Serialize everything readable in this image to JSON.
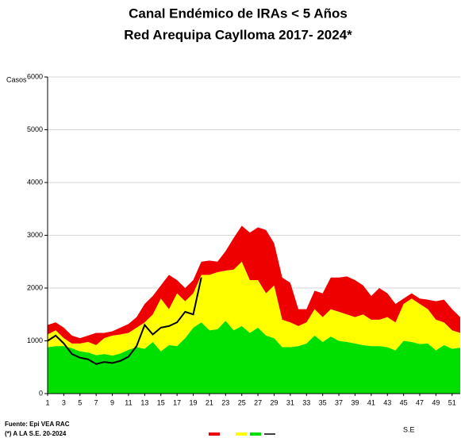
{
  "chart_data": {
    "type": "area",
    "stacked": true,
    "title": "Canal Endémico de IRAs < 5 Años",
    "subtitle": "Red Arequipa Caylloma 2017- 2024*",
    "y_label": "Casos",
    "x_label": "S.E",
    "source": "Fuente: Epi VEA RAC",
    "note": "(*) A LA S.E. 20-2024",
    "x": [
      1,
      2,
      3,
      4,
      5,
      6,
      7,
      8,
      9,
      10,
      11,
      12,
      13,
      14,
      15,
      16,
      17,
      18,
      19,
      20,
      21,
      22,
      23,
      24,
      25,
      26,
      27,
      28,
      29,
      30,
      31,
      32,
      33,
      34,
      35,
      36,
      37,
      38,
      39,
      40,
      41,
      42,
      43,
      44,
      45,
      46,
      47,
      48,
      49,
      50,
      51,
      52
    ],
    "xlim": [
      1,
      52
    ],
    "xticks": [
      1,
      3,
      5,
      7,
      9,
      11,
      13,
      15,
      17,
      19,
      21,
      23,
      25,
      27,
      29,
      31,
      33,
      35,
      37,
      39,
      41,
      43,
      45,
      47,
      49,
      51
    ],
    "ylim": [
      0,
      6000
    ],
    "yticks": [
      0,
      1000,
      2000,
      3000,
      4000,
      5000,
      6000
    ],
    "grid": true,
    "series": [
      {
        "style": "area",
        "color": "#00e000",
        "values": [
          880,
          900,
          900,
          860,
          800,
          780,
          730,
          750,
          720,
          760,
          830,
          880,
          850,
          980,
          800,
          920,
          900,
          1050,
          1250,
          1350,
          1200,
          1220,
          1380,
          1200,
          1280,
          1150,
          1250,
          1100,
          1050,
          880,
          880,
          900,
          950,
          1100,
          980,
          1080,
          1000,
          980,
          950,
          920,
          900,
          900,
          880,
          820,
          1000,
          980,
          940,
          950,
          820,
          920,
          850,
          870
        ]
      },
      {
        "style": "area",
        "color": "#ffff00",
        "values": [
          240,
          300,
          150,
          90,
          150,
          200,
          190,
          300,
          380,
          360,
          320,
          370,
          500,
          520,
          1000,
          680,
          1000,
          700,
          650,
          900,
          1050,
          1080,
          950,
          1150,
          1220,
          1000,
          900,
          800,
          1000,
          520,
          470,
          380,
          400,
          500,
          470,
          520,
          550,
          520,
          500,
          580,
          500,
          500,
          570,
          530,
          700,
          820,
          760,
          650,
          580,
          430,
          350,
          280
        ]
      },
      {
        "style": "area",
        "color": "#ee0000",
        "values": [
          180,
          150,
          200,
          150,
          100,
          120,
          230,
          100,
          80,
          130,
          170,
          200,
          350,
          350,
          250,
          650,
          250,
          250,
          250,
          250,
          270,
          200,
          370,
          600,
          680,
          900,
          1000,
          1200,
          800,
          800,
          750,
          320,
          250,
          350,
          450,
          600,
          650,
          720,
          700,
          550,
          450,
          600,
          450,
          350,
          100,
          100,
          100,
          180,
          350,
          430,
          400,
          300
        ]
      },
      {
        "style": "line",
        "color": "#000000",
        "values": [
          1000,
          1100,
          950,
          750,
          680,
          650,
          560,
          600,
          580,
          620,
          700,
          900,
          1300,
          1120,
          1250,
          1280,
          1350,
          1550,
          1500,
          2200,
          null,
          null,
          null,
          null,
          null,
          null,
          null,
          null,
          null,
          null,
          null,
          null,
          null,
          null,
          null,
          null,
          null,
          null,
          null,
          null,
          null,
          null,
          null,
          null,
          null,
          null,
          null,
          null,
          null,
          null,
          null,
          null
        ]
      }
    ]
  }
}
